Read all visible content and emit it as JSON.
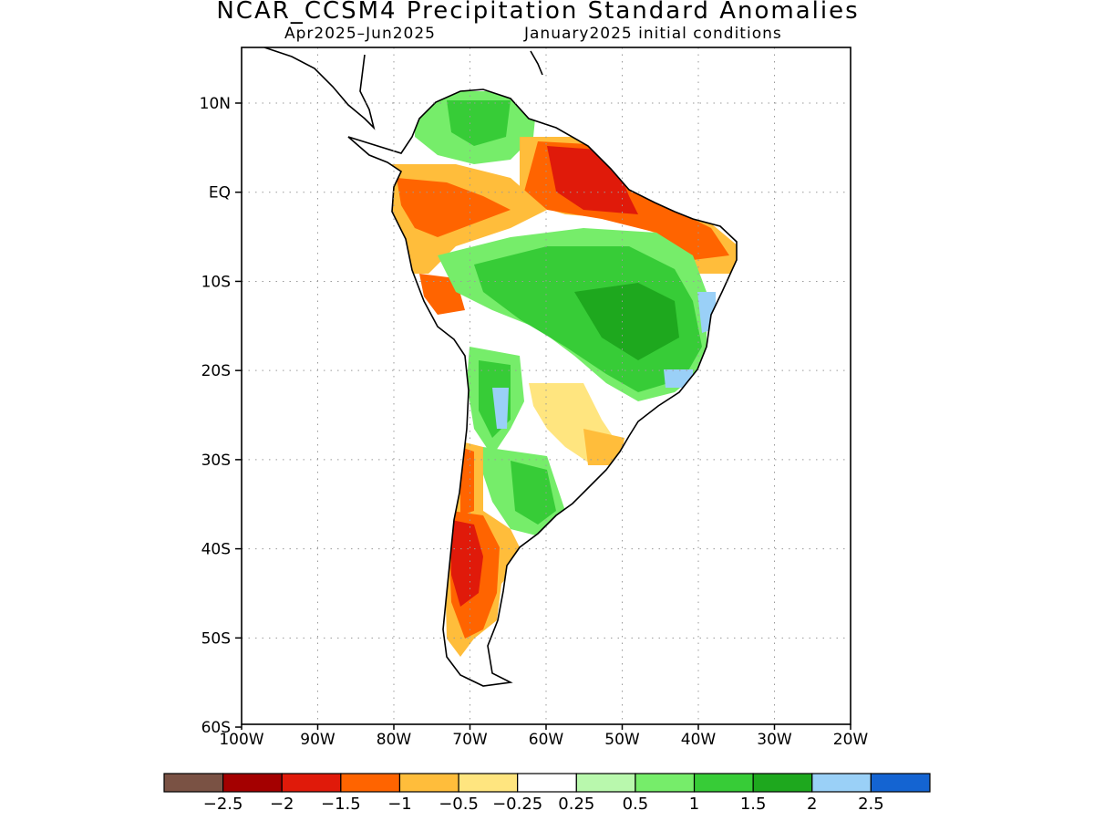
{
  "title": "NCAR_CCSM4 Precipitation Standard Anomalies",
  "subtitle_period": "Apr2025–Jun2025",
  "subtitle_ic": "January2025 initial conditions",
  "lat_labels": [
    "10N",
    "EQ",
    "10S",
    "20S",
    "30S",
    "40S",
    "50S",
    "60S"
  ],
  "lon_labels": [
    "100W",
    "90W",
    "80W",
    "70W",
    "60W",
    "50W",
    "40W",
    "30W",
    "20W"
  ],
  "colorbar": {
    "colors": [
      "#7a5244",
      "#a40000",
      "#e01a0a",
      "#ff6400",
      "#ffbd3b",
      "#ffe57f",
      "#ffffff",
      "#b9f8ad",
      "#76ed6a",
      "#37cc37",
      "#1ea81e",
      "#9ad0f7",
      "#1464d2"
    ],
    "labels": [
      "−2.5",
      "−2",
      "−1.5",
      "−1",
      "−0.5",
      "−0.25",
      "0.25",
      "0.5",
      "1",
      "1.5",
      "2",
      "2.5"
    ]
  },
  "colors": {
    "land_outline": "#000000",
    "grid": "#9a9a9a"
  }
}
